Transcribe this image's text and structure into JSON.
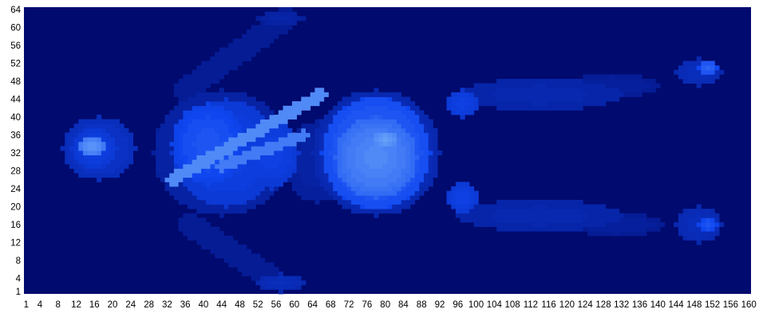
{
  "chart_data": {
    "type": "heatmap",
    "title": "",
    "xlabel": "",
    "ylabel": "",
    "xlim": [
      1,
      160
    ],
    "ylim": [
      1,
      64
    ],
    "grid": false,
    "colormap": {
      "low": "#010a6e",
      "mid": "#0f46f0",
      "high": "#a0dcff"
    },
    "x_ticks": [
      "1",
      "4",
      "8",
      "12",
      "16",
      "20",
      "24",
      "28",
      "32",
      "36",
      "40",
      "44",
      "48",
      "52",
      "56",
      "60",
      "64",
      "68",
      "72",
      "76",
      "80",
      "84",
      "88",
      "92",
      "96",
      "100",
      "104",
      "108",
      "112",
      "116",
      "120",
      "124",
      "128",
      "132",
      "136",
      "140",
      "144",
      "148",
      "152",
      "156",
      "160"
    ],
    "y_ticks": [
      "64",
      "60",
      "56",
      "52",
      "48",
      "44",
      "40",
      "36",
      "32",
      "28",
      "24",
      "20",
      "16",
      "12",
      "8",
      "4",
      "1"
    ],
    "intensity_regions": [
      {
        "shape": "ellipse",
        "cx": 17,
        "cy": 33,
        "rx": 8,
        "ry": 7,
        "value": 0.35
      },
      {
        "shape": "ellipse",
        "cx": 16,
        "cy": 33,
        "rx": 5,
        "ry": 4.5,
        "value": 0.45
      },
      {
        "shape": "ellipse",
        "cx": 15.5,
        "cy": 33.5,
        "rx": 3,
        "ry": 2.5,
        "value": 0.75
      },
      {
        "shape": "ellipse",
        "cx": 44,
        "cy": 32,
        "rx": 15,
        "ry": 14,
        "value": 0.22
      },
      {
        "shape": "ellipse",
        "cx": 45,
        "cy": 32,
        "rx": 12,
        "ry": 12,
        "value": 0.45
      },
      {
        "shape": "ellipse",
        "cx": 41,
        "cy": 34,
        "rx": 8,
        "ry": 9,
        "value": 0.55
      },
      {
        "shape": "ellipse",
        "cx": 55,
        "cy": 32,
        "rx": 6,
        "ry": 8,
        "value": 0.45
      },
      {
        "shape": "ellipse",
        "cx": 65,
        "cy": 30,
        "rx": 7,
        "ry": 9,
        "value": 0.2
      },
      {
        "shape": "ellipse",
        "cx": 78,
        "cy": 32,
        "rx": 14,
        "ry": 14,
        "value": 0.3
      },
      {
        "shape": "ellipse",
        "cx": 78,
        "cy": 32,
        "rx": 12,
        "ry": 12.5,
        "value": 0.6
      },
      {
        "shape": "ellipse",
        "cx": 78,
        "cy": 31,
        "rx": 9,
        "ry": 9,
        "value": 0.72
      },
      {
        "shape": "ellipse",
        "cx": 80,
        "cy": 35,
        "rx": 3,
        "ry": 2,
        "value": 0.8
      },
      {
        "shape": "ellipse",
        "cx": 97,
        "cy": 43,
        "rx": 3.5,
        "ry": 3,
        "value": 0.45
      },
      {
        "shape": "ellipse",
        "cx": 114,
        "cy": 45,
        "rx": 18,
        "ry": 3.5,
        "value": 0.25
      },
      {
        "shape": "ellipse",
        "cx": 130,
        "cy": 47,
        "rx": 10,
        "ry": 2.5,
        "value": 0.18
      },
      {
        "shape": "ellipse",
        "cx": 149,
        "cy": 50,
        "rx": 5,
        "ry": 3,
        "value": 0.3
      },
      {
        "shape": "ellipse",
        "cx": 151,
        "cy": 51,
        "rx": 2,
        "ry": 1.5,
        "value": 0.6
      },
      {
        "shape": "ellipse",
        "cx": 97,
        "cy": 22,
        "rx": 3.5,
        "ry": 3.5,
        "value": 0.45
      },
      {
        "shape": "ellipse",
        "cx": 114,
        "cy": 18,
        "rx": 18,
        "ry": 3.5,
        "value": 0.25
      },
      {
        "shape": "ellipse",
        "cx": 131,
        "cy": 16,
        "rx": 10,
        "ry": 2.5,
        "value": 0.18
      },
      {
        "shape": "ellipse",
        "cx": 149,
        "cy": 16,
        "rx": 5,
        "ry": 4,
        "value": 0.3
      },
      {
        "shape": "ellipse",
        "cx": 151,
        "cy": 16,
        "rx": 2,
        "ry": 1.5,
        "value": 0.55
      },
      {
        "shape": "line",
        "x1": 36,
        "y1": 46,
        "x2": 58,
        "y2": 62,
        "width": 2.6,
        "value": 0.15
      },
      {
        "shape": "ellipse",
        "cx": 57,
        "cy": 62,
        "rx": 5,
        "ry": 1.5,
        "value": 0.22
      },
      {
        "shape": "line",
        "x1": 37,
        "y1": 16,
        "x2": 55,
        "y2": 4,
        "width": 2.6,
        "value": 0.15
      },
      {
        "shape": "ellipse",
        "cx": 57,
        "cy": 3,
        "rx": 5,
        "ry": 2,
        "value": 0.3
      },
      {
        "shape": "line",
        "x1": 33,
        "y1": 26,
        "x2": 66,
        "y2": 45,
        "width": 1.4,
        "value": 0.72
      },
      {
        "shape": "line",
        "x1": 44,
        "y1": 29,
        "x2": 62,
        "y2": 36,
        "width": 1.2,
        "value": 0.68
      }
    ]
  }
}
